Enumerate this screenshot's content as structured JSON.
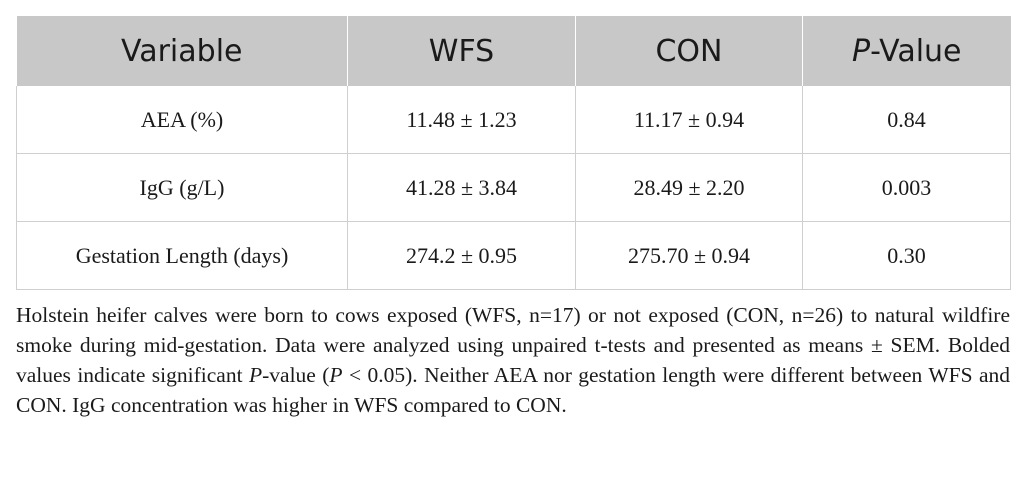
{
  "table": {
    "headers": {
      "variable": "Variable",
      "wfs": "WFS",
      "con": "CON",
      "p_prefix": "P",
      "p_suffix": "-Value"
    },
    "rows": [
      {
        "variable": "AEA (%)",
        "wfs": "11.48 ± 1.23",
        "con": "11.17 ± 0.94",
        "p": "0.84"
      },
      {
        "variable": "IgG (g/L)",
        "wfs": "41.28 ± 3.84",
        "con": "28.49 ± 2.20",
        "p": "0.003"
      },
      {
        "variable": "Gestation Length (days)",
        "wfs": "274.2 ± 0.95",
        "con": "275.70 ± 0.94",
        "p": "0.30"
      }
    ]
  },
  "caption": {
    "part1": "Holstein heifer calves were born to cows exposed (WFS, n=17) or not exposed (CON, n=26) to natural wildfire smoke during mid-gestation. Data were analyzed using unpaired t-tests and presented as means ± SEM. Bolded values indicate significant ",
    "p1": "P",
    "part2": "-value (",
    "p2": "P",
    "part3": " < 0.05). Neither AEA nor gestation length were different between WFS and CON. IgG concentration was higher in WFS compared to CON."
  }
}
